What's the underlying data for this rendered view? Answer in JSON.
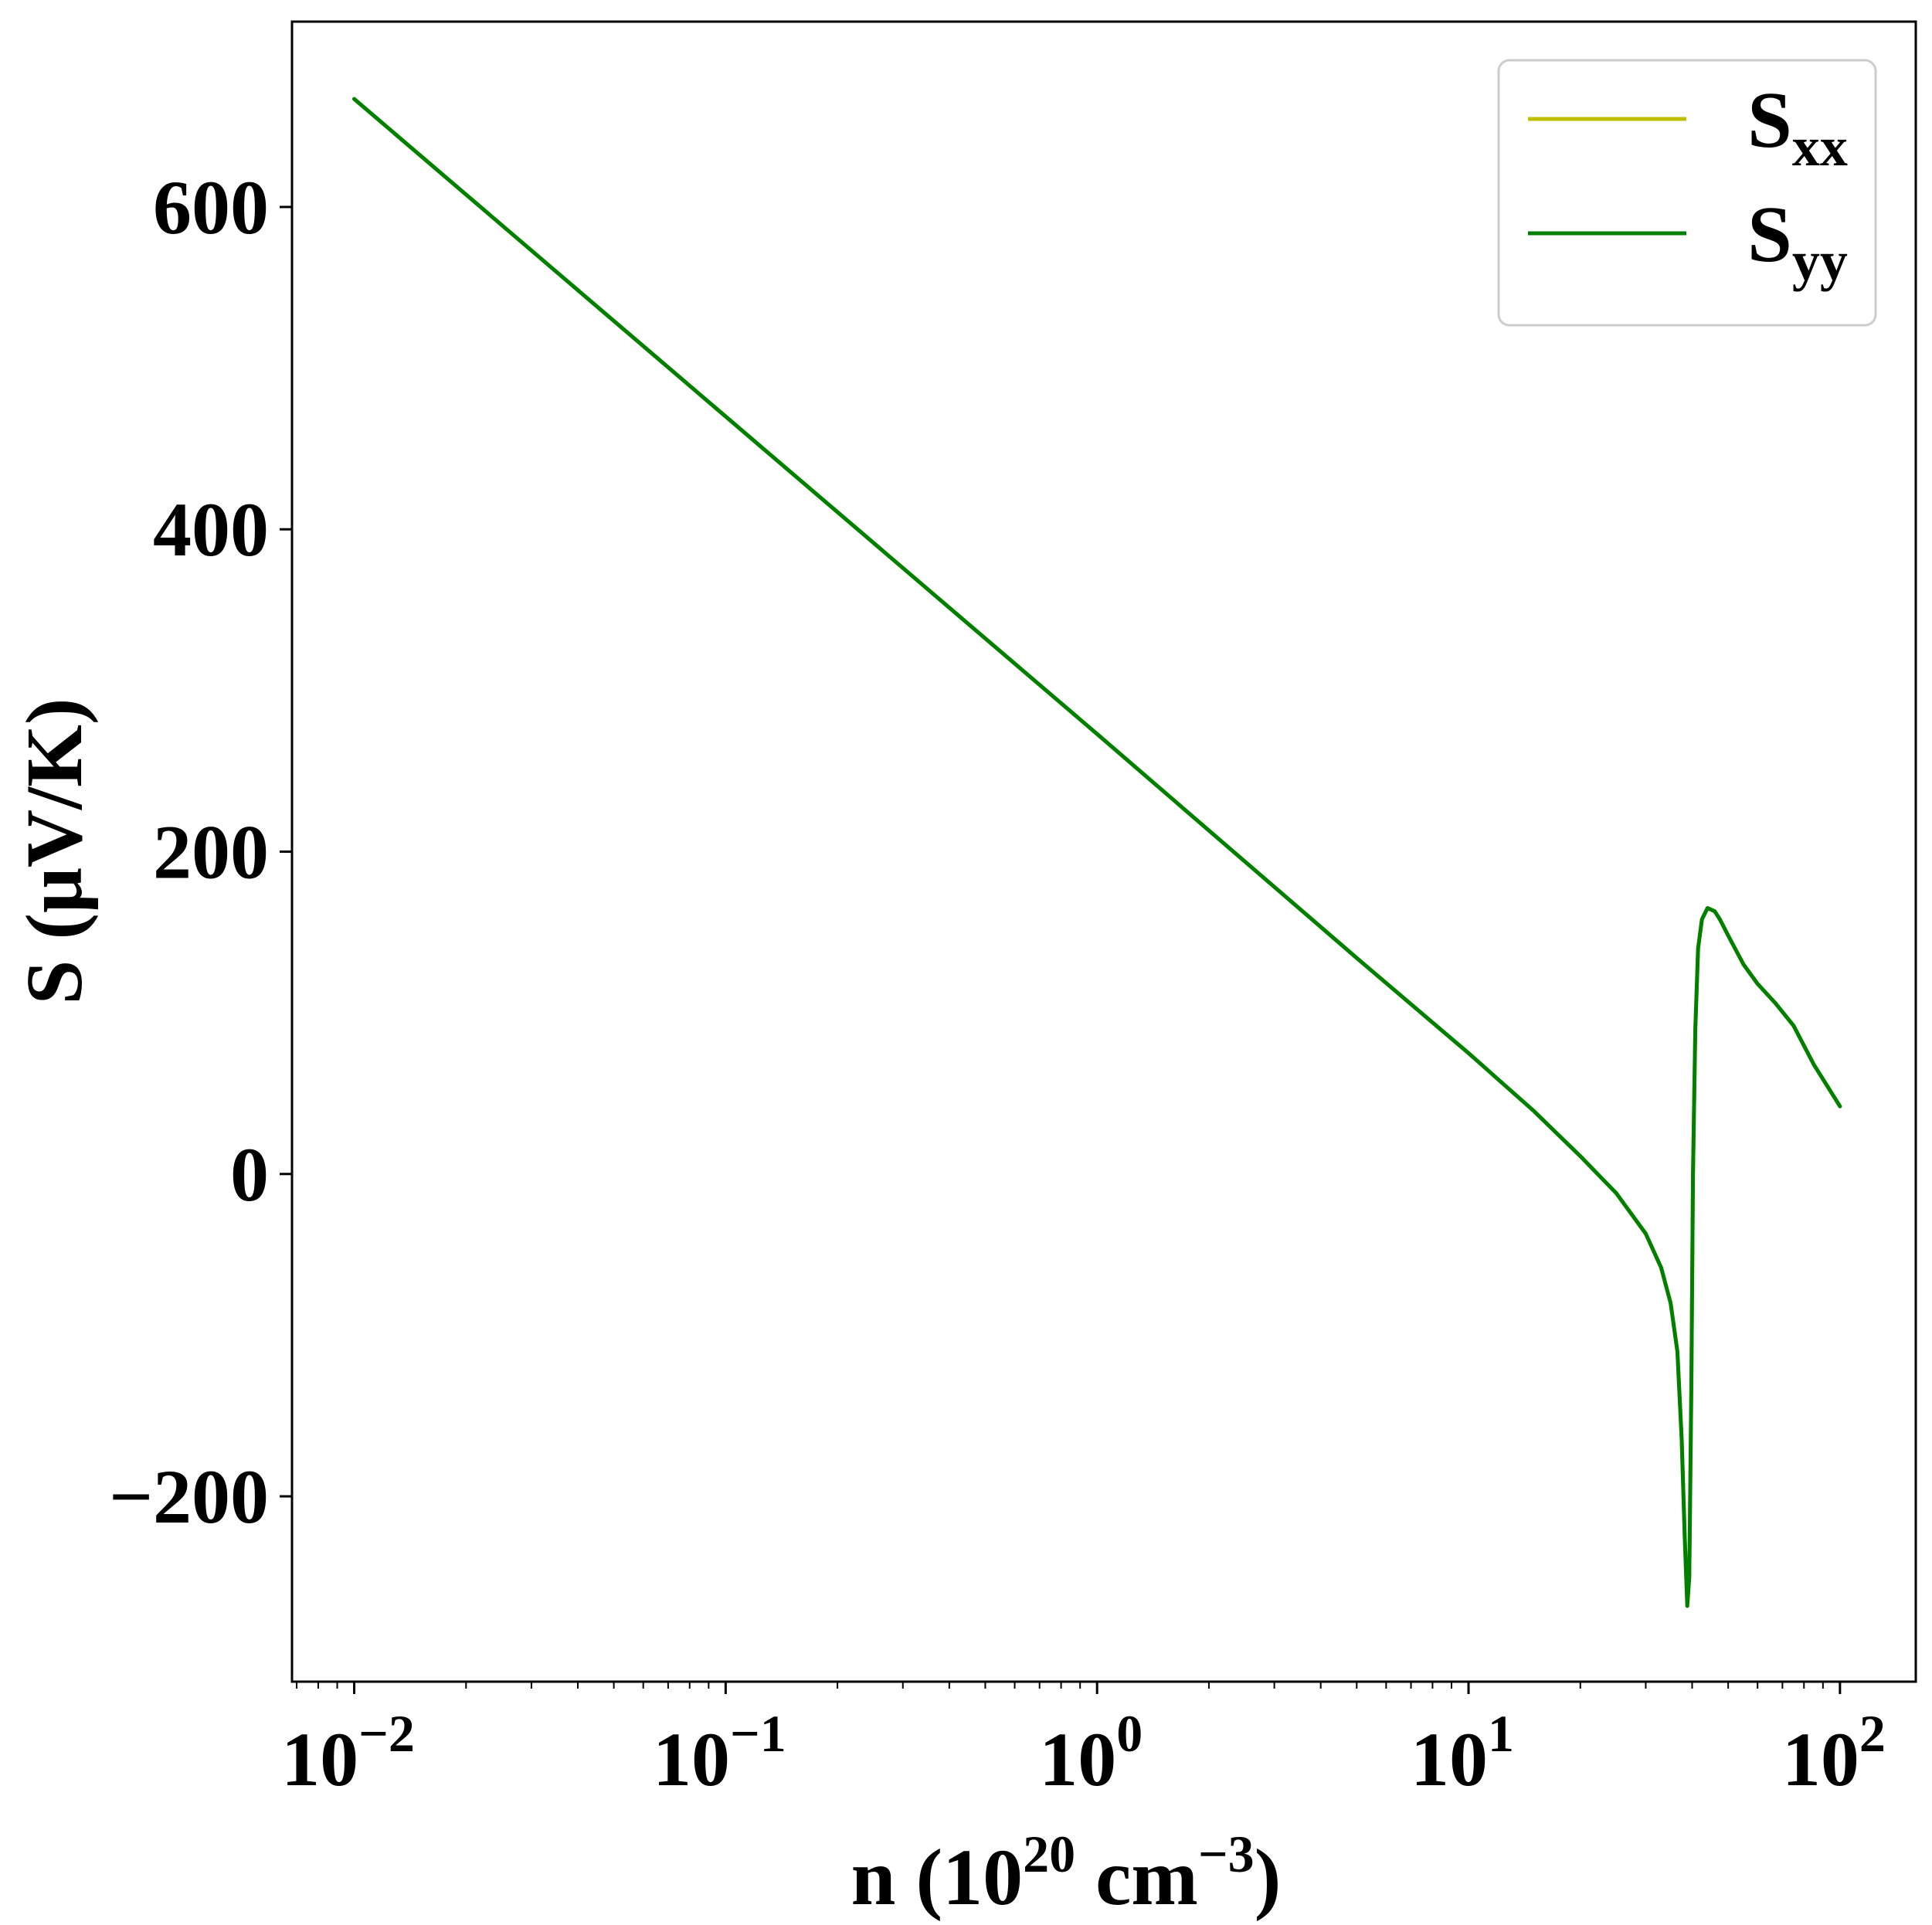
{
  "chart_data": {
    "type": "line",
    "xscale": "log",
    "xlim": [
      0.0068,
      160
    ],
    "ylim": [
      -315,
      715
    ],
    "grid": false,
    "legend_position": "top-right",
    "xlabel": {
      "prefix": "n (10",
      "sup1": "20",
      "middle": " cm",
      "sup2": "−3",
      "suffix": ")"
    },
    "ylabel": "S (μV/K)",
    "xticks": [
      {
        "value": 0.01,
        "base": "10",
        "exp": "−2"
      },
      {
        "value": 0.1,
        "base": "10",
        "exp": "−1"
      },
      {
        "value": 1,
        "base": "10",
        "exp": "0"
      },
      {
        "value": 10,
        "base": "10",
        "exp": "1"
      },
      {
        "value": 100,
        "base": "10",
        "exp": "2"
      }
    ],
    "yticks": [
      {
        "value": -200,
        "label": "−200"
      },
      {
        "value": 0,
        "label": "0"
      },
      {
        "value": 200,
        "label": "200"
      },
      {
        "value": 400,
        "label": "400"
      },
      {
        "value": 600,
        "label": "600"
      }
    ],
    "series": [
      {
        "name": "S_xx",
        "label_main": "S",
        "label_sub": "xx",
        "color": "#bfbf00",
        "x": [
          0.01,
          0.1,
          1,
          5,
          10,
          15,
          20,
          25,
          30,
          33,
          35,
          36.5,
          37.5,
          38.2,
          38.8,
          39.3,
          39.8,
          40.2,
          40.8,
          41.5,
          42.5,
          44,
          46,
          47.5,
          50,
          55,
          60,
          67,
          75,
          85,
          100
        ],
        "y": [
          667,
          470,
          273,
          134,
          75,
          39,
          11,
          -12,
          -37,
          -58,
          -80,
          -110,
          -165,
          -225,
          -268,
          -250,
          -130,
          0,
          90,
          140,
          158,
          165,
          163,
          158,
          148,
          130,
          118,
          106,
          92,
          68,
          42
        ]
      },
      {
        "name": "S_yy",
        "label_main": "S",
        "label_sub": "yy",
        "color": "#008000",
        "x": [
          0.01,
          0.1,
          1,
          5,
          10,
          15,
          20,
          25,
          30,
          33,
          35,
          36.5,
          37.5,
          38.2,
          38.8,
          39.3,
          39.8,
          40.2,
          40.8,
          41.5,
          42.5,
          44,
          46,
          47.5,
          50,
          55,
          60,
          67,
          75,
          85,
          100
        ],
        "y": [
          667,
          470,
          273,
          134,
          75,
          39,
          11,
          -12,
          -37,
          -58,
          -80,
          -110,
          -165,
          -225,
          -268,
          -250,
          -130,
          0,
          90,
          140,
          158,
          165,
          163,
          158,
          148,
          130,
          118,
          106,
          92,
          68,
          42
        ]
      }
    ]
  }
}
